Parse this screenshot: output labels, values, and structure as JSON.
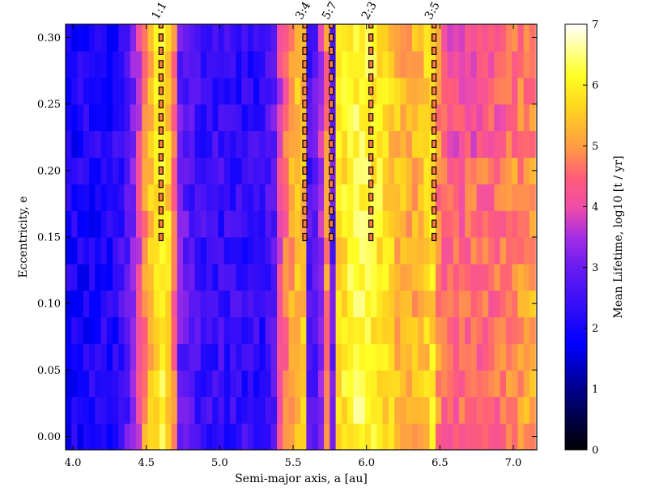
{
  "chart_data": {
    "type": "heatmap",
    "title": "",
    "xlabel": "Semi-major axis, a [au]",
    "ylabel": "Eccentricity, e",
    "colorbar_label": "Mean Lifetime, log10 [t / yr]",
    "xlim": [
      3.95,
      7.16
    ],
    "ylim": [
      -0.01,
      0.31
    ],
    "clim": [
      0,
      7
    ],
    "x_ticks": [
      "4.0",
      "4.5",
      "5.0",
      "5.5",
      "6.0",
      "6.5",
      "7.0"
    ],
    "y_ticks": [
      "0.00",
      "0.05",
      "0.10",
      "0.15",
      "0.20",
      "0.25",
      "0.30"
    ],
    "colorbar_ticks": [
      "0",
      "1",
      "2",
      "3",
      "4",
      "5",
      "6",
      "7"
    ],
    "grid_a_range": [
      3.95,
      7.15
    ],
    "grid_e_range": [
      -0.01,
      0.31
    ],
    "columns": 80,
    "rows": 16,
    "column_profile_a": [
      3.95,
      4.28,
      4.35,
      4.43,
      4.47,
      4.52,
      4.62,
      4.68,
      4.72,
      4.9,
      5.3,
      5.38,
      5.42,
      5.5,
      5.57,
      5.61,
      5.68,
      5.72,
      5.77,
      5.8,
      5.95,
      6.1,
      6.22,
      6.35,
      6.45,
      6.5,
      6.6,
      6.9,
      7.15
    ],
    "column_profile_lifetime": [
      2.0,
      2.1,
      2.6,
      3.3,
      4.6,
      5.3,
      6.1,
      5.1,
      3.0,
      2.4,
      2.3,
      2.9,
      4.2,
      5.2,
      5.5,
      2.6,
      2.9,
      5.3,
      2.8,
      5.7,
      6.3,
      5.9,
      5.3,
      5.2,
      5.8,
      4.6,
      4.4,
      4.6,
      5.2
    ],
    "resonances": [
      {
        "label": "1:1",
        "a": 4.6,
        "e_min": 0.15
      },
      {
        "label": "3:4",
        "a": 5.58,
        "e_min": 0.15
      },
      {
        "label": "5:7",
        "a": 5.76,
        "e_min": 0.15
      },
      {
        "label": "2:3",
        "a": 6.03,
        "e_min": 0.15
      },
      {
        "label": "3:5",
        "a": 6.46,
        "e_min": 0.15
      }
    ]
  }
}
